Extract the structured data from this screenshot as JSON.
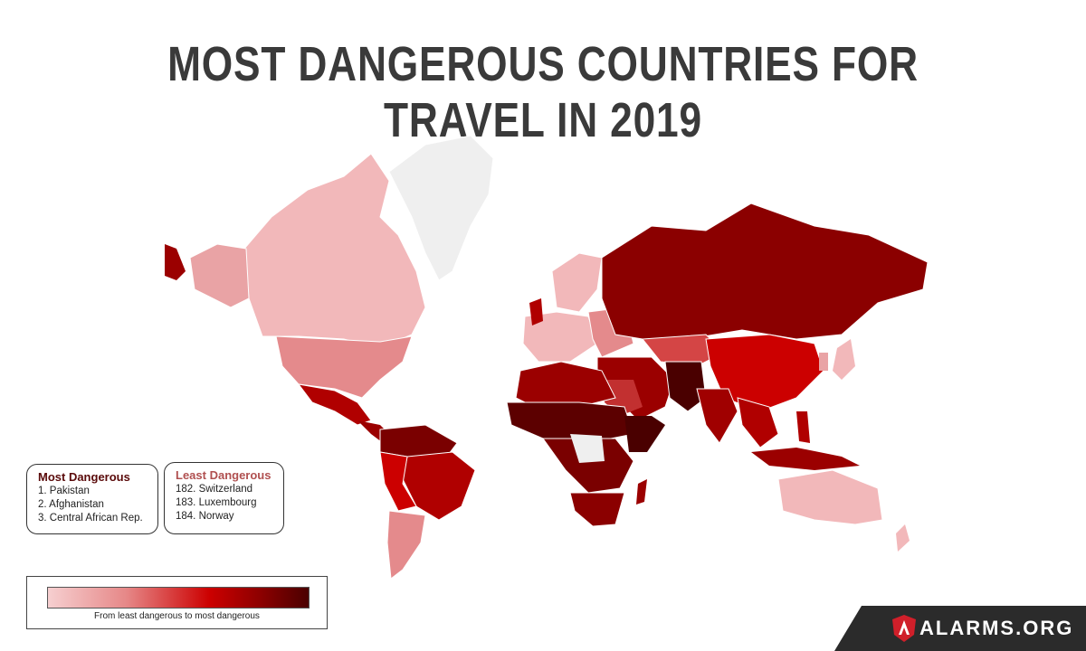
{
  "title": "MOST DANGEROUS COUNTRIES FOR TRAVEL IN 2019",
  "colors": {
    "least": "#f2b8ba",
    "low": "#e48a8c",
    "mid": "#cc0000",
    "high": "#9b0000",
    "most": "#5c0000",
    "nodata": "#efefef"
  },
  "most_dangerous": {
    "heading": "Most Dangerous",
    "items": [
      "1. Pakistan",
      "2. Afghanistan",
      "3. Central African Rep."
    ]
  },
  "least_dangerous": {
    "heading": "Least Dangerous",
    "items": [
      "182. Switzerland",
      "183. Luxembourg",
      "184. Norway"
    ]
  },
  "scale": {
    "caption": "From least dangerous to most dangerous"
  },
  "brand": {
    "text": "ALARMS.ORG",
    "icon": "shield-icon"
  }
}
